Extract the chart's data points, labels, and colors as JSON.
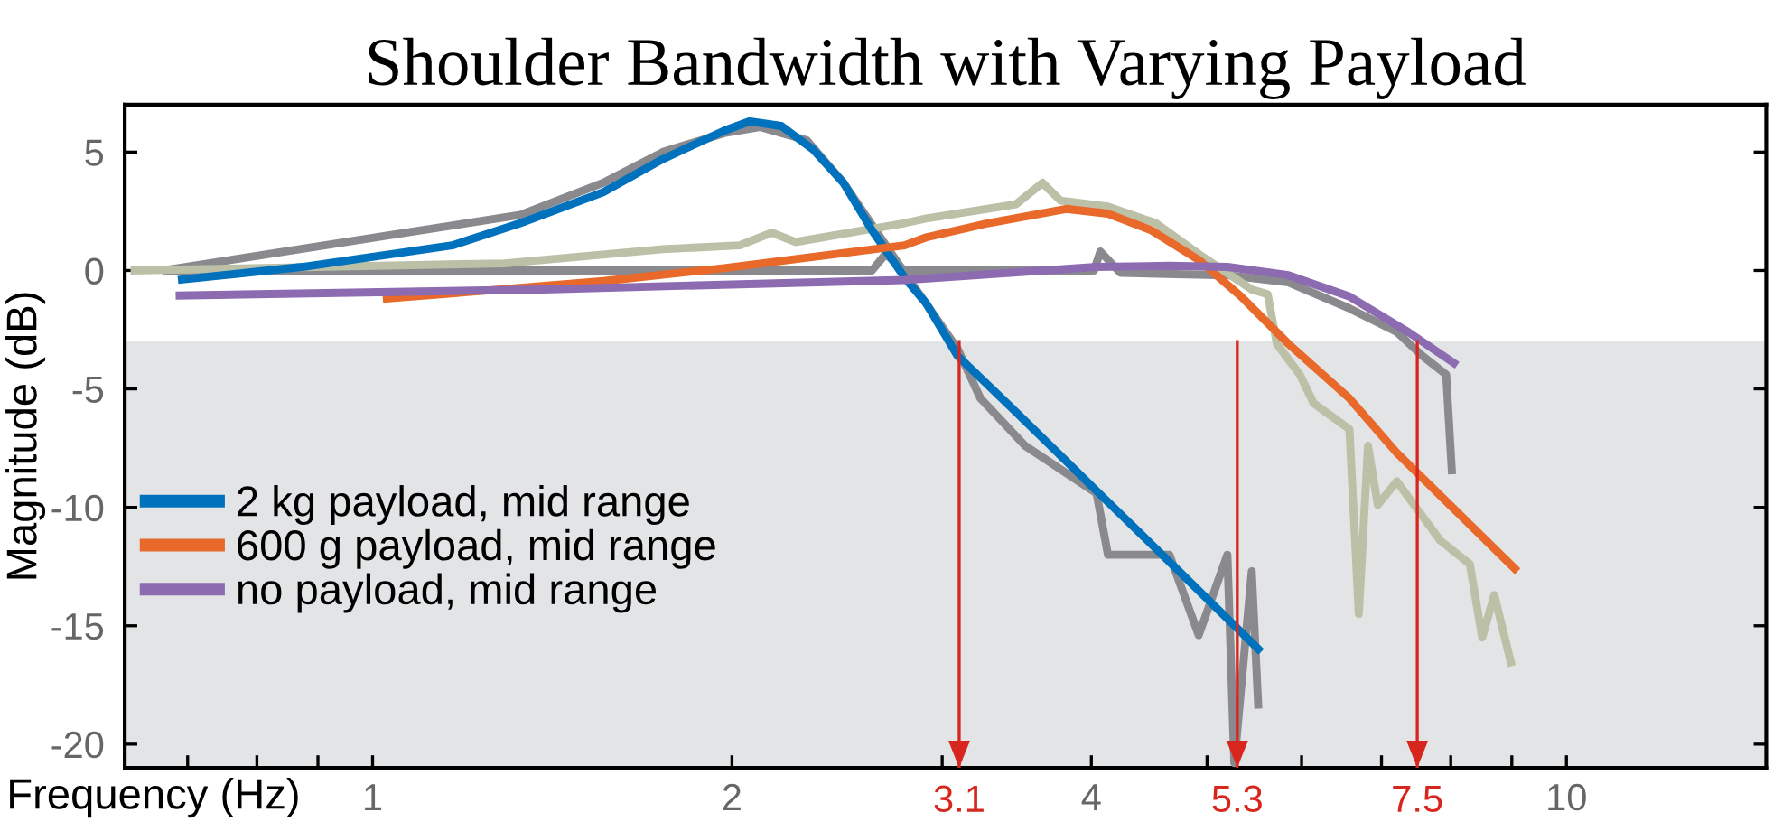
{
  "chart_data": {
    "type": "line",
    "title": "Shoulder Bandwidth with Varying Payload",
    "xlabel": "Frequency (Hz)",
    "ylabel": "Magnitude (dB)",
    "log": "x",
    "xlim": [
      0.62,
      14.7
    ],
    "ylim": [
      -21,
      7
    ],
    "xticks": [
      {
        "value": 0.7,
        "label": null
      },
      {
        "value": 0.8,
        "label": null
      },
      {
        "value": 0.9,
        "label": null
      },
      1,
      2,
      {
        "value": 3,
        "label": null
      },
      4,
      {
        "value": 5,
        "label": null
      },
      {
        "value": 6,
        "label": null
      },
      {
        "value": 7,
        "label": null
      },
      {
        "value": 8,
        "label": null
      },
      {
        "value": 9,
        "label": null
      },
      10
    ],
    "yticks": [
      -20,
      -15,
      -10,
      -5,
      0,
      5
    ],
    "grid": false,
    "legend": "left",
    "line_style": "solid",
    "marker": "none",
    "bands": [
      {
        "axis": "y",
        "from": -21,
        "to": -3,
        "label": null,
        "color": "#e3e4e6"
      }
    ],
    "ref_lines": [
      {
        "axis": "x",
        "value": 3.1,
        "label": "3.1",
        "color": "#d7261e"
      },
      {
        "axis": "x",
        "value": 5.3,
        "label": "5.3",
        "color": "#d7261e"
      },
      {
        "axis": "x",
        "value": 7.5,
        "label": "7.5",
        "color": "#d7261e"
      }
    ],
    "series": [
      {
        "color": "#8a8a8e",
        "x": [
          0.668,
          1.33,
          1.56,
          1.75,
          1.97,
          2.11,
          2.31,
          2.48,
          2.79,
          3.09,
          3.23,
          3.52,
          4.04,
          4.13,
          4.38,
          4.65,
          4.92,
          5.2,
          5.27,
          5.45,
          5.52
        ],
        "values": [
          0,
          2.35,
          3.7,
          5.0,
          5.8,
          6.06,
          5.5,
          3.7,
          -0.1,
          -3.3,
          -5.4,
          -7.4,
          -9.4,
          -12,
          -12,
          -12,
          -15.4,
          -12,
          -20.8,
          -12.7,
          -18.5
        ]
      },
      {
        "color": "#8a8a8e",
        "x": [
          0.668,
          2.62,
          2.69,
          2.79,
          4.02,
          4.07,
          4.23,
          5.2,
          5.85,
          6.58,
          7.21,
          7.57,
          7.93,
          8.0,
          8.02
        ],
        "values": [
          0,
          0,
          0.7,
          0,
          0,
          0.8,
          -0.1,
          -0.2,
          -0.5,
          -1.6,
          -2.6,
          -3.6,
          -4.4,
          -7.7,
          -8.6
        ]
      },
      {
        "color": "#bcc0a6",
        "x": [
          0.627,
          1.29,
          1.75,
          2.03,
          2.16,
          2.26,
          2.79,
          2.91,
          3.46,
          3.64,
          3.77,
          4.13,
          4.53,
          4.92,
          5.45,
          5.62,
          5.72,
          5.98,
          6.14,
          6.58,
          6.7,
          6.82,
          6.95,
          7.21,
          7.84,
          8.3,
          8.5,
          8.7,
          9.0
        ],
        "values": [
          0,
          0.3,
          0.9,
          1.06,
          1.6,
          1.2,
          2.0,
          2.2,
          2.8,
          3.7,
          2.95,
          2.7,
          2.0,
          0.7,
          -0.8,
          -1.0,
          -3.1,
          -4.4,
          -5.6,
          -6.7,
          -14.5,
          -7.4,
          -9.9,
          -8.9,
          -11.4,
          -12.4,
          -15.5,
          -13.7,
          -16.7
        ]
      },
      {
        "name": "2 kg payload, mid range",
        "color": "#0072bd",
        "x": [
          0.687,
          0.873,
          1.166,
          1.33,
          1.56,
          1.75,
          1.97,
          2.07,
          2.2,
          2.34,
          2.48,
          2.62,
          2.79,
          2.91,
          3.09,
          3.43,
          3.68,
          4.04,
          4.65,
          5.55
        ],
        "values": [
          -0.4,
          0.15,
          1.06,
          2.0,
          3.3,
          4.7,
          5.9,
          6.3,
          6.1,
          5.1,
          3.7,
          1.7,
          -0.3,
          -1.4,
          -3.6,
          -5.8,
          -7.3,
          -9.3,
          -12.3,
          -16.1
        ]
      },
      {
        "name": "600 g payload, mid range",
        "color": "#e8692a",
        "x": [
          1.02,
          1.56,
          1.97,
          2.79,
          2.91,
          3.28,
          3.81,
          4.13,
          4.49,
          4.92,
          5.34,
          5.85,
          6.58,
          7.21,
          9.1
        ],
        "values": [
          -1.2,
          -0.45,
          0.1,
          1.06,
          1.4,
          2.0,
          2.6,
          2.4,
          1.7,
          0.45,
          -1.1,
          -3.1,
          -5.4,
          -7.7,
          -12.7
        ]
      },
      {
        "name": "no payload, mid range",
        "color": "#8c6bb1",
        "x": [
          0.684,
          1.39,
          2.79,
          4.04,
          4.65,
          5.2,
          5.85,
          6.58,
          7.37,
          8.1
        ],
        "values": [
          -1.06,
          -0.8,
          -0.4,
          0.15,
          0.2,
          0.15,
          -0.2,
          -1.1,
          -2.6,
          -4.0
        ]
      }
    ]
  }
}
